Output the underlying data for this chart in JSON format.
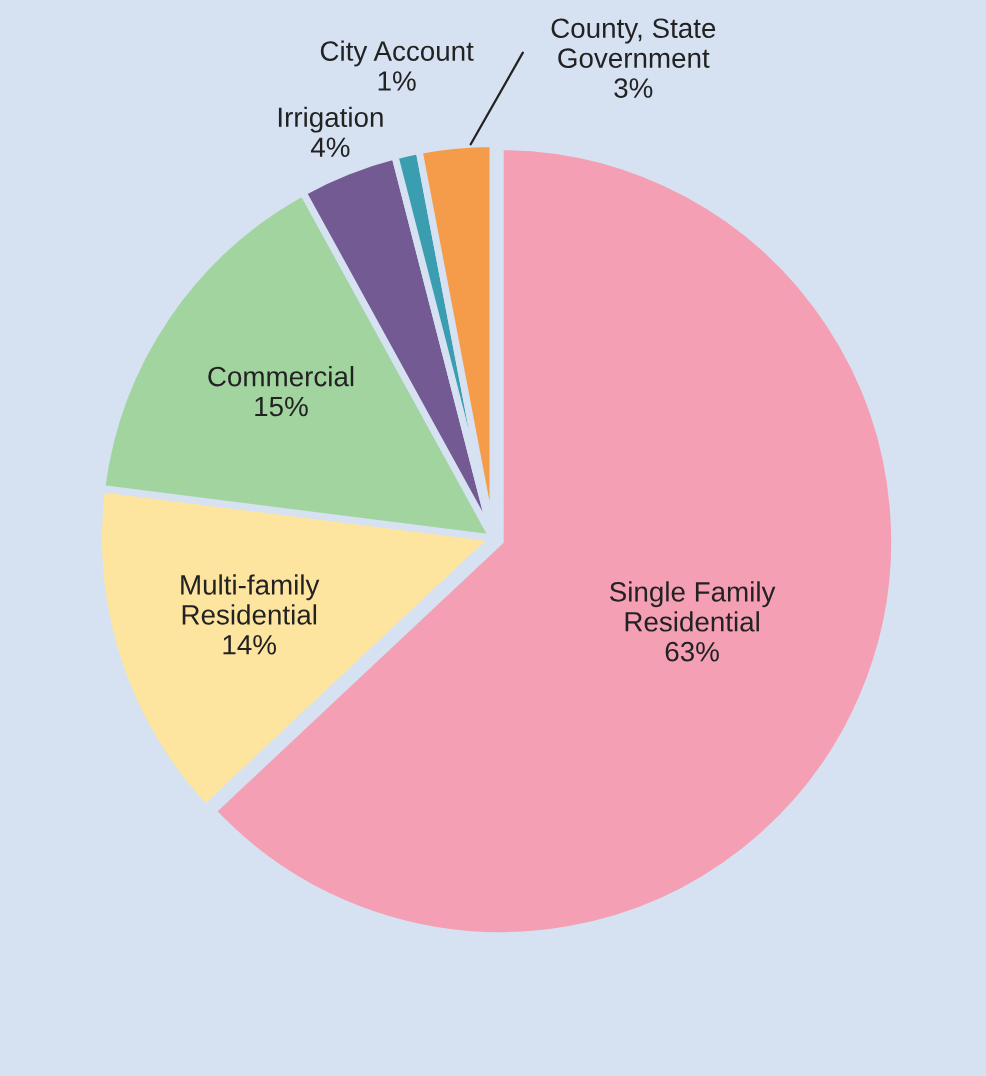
{
  "chart_data": {
    "type": "pie",
    "categories": [
      "Single Family\nResidential",
      "Multi-family\nResidential",
      "Commercial",
      "Irrigation",
      "City Account",
      "County, State\nGovernment"
    ],
    "values": [
      63,
      14,
      15,
      4,
      1,
      3
    ],
    "value_labels": [
      "63%",
      "14%",
      "15%",
      "4%",
      "1%",
      "3%"
    ],
    "colors": [
      "#f49fb4",
      "#fde59f",
      "#a2d4a0",
      "#735a93",
      "#3a9db0",
      "#f59c4a"
    ],
    "legend": false
  }
}
